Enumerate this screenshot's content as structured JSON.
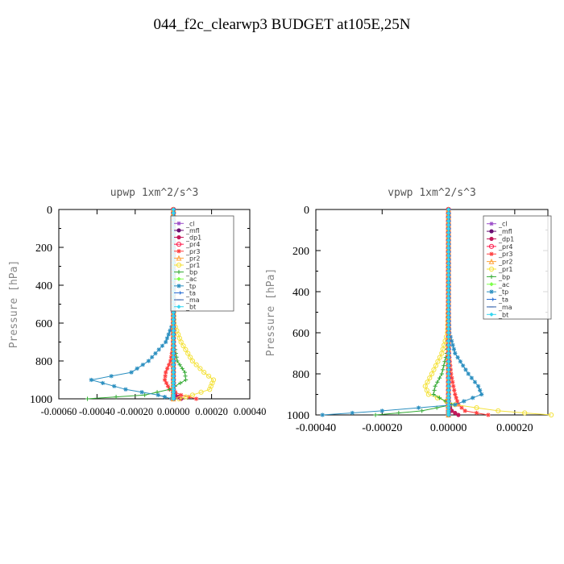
{
  "page": {
    "title": "044_f2c_clearwp3  BUDGET at105E,25N"
  },
  "legend_labels": [
    "_cl",
    "_mfl",
    "_dp1",
    "_pr4",
    "_pr3",
    "_pr2",
    "_pr1",
    "_bp",
    "_ac",
    "_tp",
    "_ta",
    "_ma",
    "_bt"
  ],
  "series_styles": [
    {
      "name": "_cl",
      "color": "#9b4dc9",
      "marker": "cross"
    },
    {
      "name": "_mfl",
      "color": "#6a0e72",
      "marker": "dot"
    },
    {
      "name": "_dp1",
      "color": "#c2185b",
      "marker": "dot"
    },
    {
      "name": "_pr4",
      "color": "#ff1a4b",
      "marker": "circle"
    },
    {
      "name": "_pr3",
      "color": "#ff4040",
      "marker": "asterisk"
    },
    {
      "name": "_pr2",
      "color": "#ffa33a",
      "marker": "triangle"
    },
    {
      "name": "_pr1",
      "color": "#f4e23c",
      "marker": "circle"
    },
    {
      "name": "_bp",
      "color": "#33aa33",
      "marker": "plus"
    },
    {
      "name": "_ac",
      "color": "#7cff4a",
      "marker": "diamond"
    },
    {
      "name": "_tp",
      "color": "#2b8fc0",
      "marker": "asterisk"
    },
    {
      "name": "_ta",
      "color": "#2a6fd4",
      "marker": "arrow"
    },
    {
      "name": "_ma",
      "color": "#2a5aa8",
      "marker": "dash"
    },
    {
      "name": "_bt",
      "color": "#35d6f0",
      "marker": "diamond"
    }
  ],
  "chart_data": [
    {
      "type": "line",
      "title": "upwp   1xm^2/s^3",
      "xlabel": "",
      "ylabel": "Pressure [hPa]",
      "ylim": [
        1000,
        0
      ],
      "xlim": [
        -0.0006,
        0.0004
      ],
      "x_ticks": [
        -0.0006,
        -0.0004,
        -0.0002,
        0.0,
        0.0002,
        0.0004
      ],
      "x_tick_labels": [
        "-0.00060",
        "-0.00040",
        "-0.00020",
        "0.00000",
        "0.00020",
        "0.00040"
      ],
      "y_ticks": [
        0,
        200,
        400,
        600,
        800,
        1000
      ],
      "y_tick_labels": [
        "0",
        "200",
        "400",
        "600",
        "800",
        "1000"
      ],
      "legend_position": "top-right",
      "series": [
        {
          "name": "_cl",
          "pressure": [
            0,
            150,
            300,
            450,
            600,
            700,
            800,
            860,
            900,
            950,
            980,
            1000
          ],
          "values": [
            0,
            0,
            0,
            0,
            0,
            0,
            0,
            0,
            0,
            0,
            0,
            0
          ]
        },
        {
          "name": "_mfl",
          "pressure": [
            0,
            150,
            300,
            450,
            600,
            700,
            800,
            860,
            900,
            950,
            980,
            1000
          ],
          "values": [
            0,
            0,
            0,
            0,
            0,
            0,
            0,
            0,
            0,
            0,
            0,
            0
          ]
        },
        {
          "name": "_dp1",
          "pressure": [
            0,
            150,
            300,
            450,
            600,
            700,
            800,
            860,
            900,
            950,
            980,
            1000
          ],
          "values": [
            0,
            0,
            0,
            0,
            0,
            0,
            0,
            0,
            0,
            0,
            1e-05,
            4e-05
          ]
        },
        {
          "name": "_pr4",
          "pressure": [
            0,
            150,
            300,
            450,
            600,
            700,
            800,
            860,
            900,
            950,
            980,
            1000
          ],
          "values": [
            0,
            0,
            0,
            0,
            0,
            0,
            0,
            0,
            0,
            0,
            0,
            0
          ]
        },
        {
          "name": "_pr3",
          "pressure": [
            0,
            150,
            300,
            450,
            600,
            700,
            800,
            860,
            900,
            950,
            980,
            1000
          ],
          "values": [
            0,
            0,
            0,
            0,
            0,
            2e-06,
            -1.5e-05,
            -4e-05,
            -4.5e-05,
            -2e-05,
            4e-05,
            0.00012
          ]
        },
        {
          "name": "_pr2",
          "pressure": [
            0,
            150,
            300,
            450,
            600,
            700,
            800,
            860,
            900,
            950,
            980,
            1000
          ],
          "values": [
            0,
            0,
            0,
            0,
            0,
            0,
            0,
            0,
            0,
            0,
            0,
            0
          ]
        },
        {
          "name": "_pr1",
          "pressure": [
            0,
            150,
            300,
            450,
            600,
            700,
            800,
            860,
            900,
            950,
            980,
            1000
          ],
          "values": [
            0,
            0,
            0,
            0,
            3e-06,
            4e-05,
            0.0001,
            0.00016,
            0.00021,
            0.00019,
            0.0001,
            3e-05
          ]
        },
        {
          "name": "_bp",
          "pressure": [
            0,
            150,
            300,
            450,
            600,
            700,
            800,
            860,
            900,
            950,
            980,
            1000
          ],
          "values": [
            0,
            0,
            0,
            0,
            0,
            3e-06,
            2e-05,
            6e-05,
            6.5e-05,
            -2e-05,
            -0.00015,
            -0.00045
          ]
        },
        {
          "name": "_ac",
          "pressure": [
            0,
            150,
            300,
            450,
            600,
            700,
            800,
            860,
            900,
            950,
            980,
            1000
          ],
          "values": [
            0,
            0,
            0,
            0,
            0,
            0,
            0,
            0,
            0,
            0,
            0,
            0
          ]
        },
        {
          "name": "_tp",
          "pressure": [
            0,
            150,
            300,
            450,
            600,
            700,
            800,
            860,
            900,
            950,
            980,
            1000
          ],
          "values": [
            0,
            0,
            0,
            0,
            -3e-06,
            -4e-05,
            -0.00013,
            -0.00022,
            -0.00043,
            -0.00025,
            -8e-05,
            -1e-05
          ]
        },
        {
          "name": "_ta",
          "pressure": [
            0,
            150,
            300,
            450,
            600,
            700,
            800,
            860,
            900,
            950,
            980,
            1000
          ],
          "values": [
            0,
            0,
            0,
            0,
            0,
            0,
            0,
            0,
            0,
            0,
            0,
            0
          ]
        },
        {
          "name": "_ma",
          "pressure": [
            0,
            150,
            300,
            450,
            600,
            700,
            800,
            860,
            900,
            950,
            980,
            1000
          ],
          "values": [
            0,
            0,
            0,
            0,
            0,
            0,
            0,
            0,
            0,
            0,
            0,
            0
          ]
        },
        {
          "name": "_bt",
          "pressure": [
            0,
            150,
            300,
            450,
            600,
            700,
            800,
            860,
            900,
            950,
            980,
            1000
          ],
          "values": [
            0,
            0,
            0,
            0,
            0,
            0,
            0,
            0,
            0,
            0,
            0,
            0
          ]
        }
      ]
    },
    {
      "type": "line",
      "title": "vpwp   1xm^2/s^3",
      "xlabel": "",
      "ylabel": "Pressure [hPa]",
      "ylim": [
        1000,
        0
      ],
      "xlim": [
        -0.0004,
        0.0003
      ],
      "x_ticks": [
        -0.0004,
        -0.0002,
        0.0,
        0.0002
      ],
      "x_tick_labels": [
        "-0.00040",
        "-0.00020",
        "0.00000",
        "0.00020"
      ],
      "y_ticks": [
        0,
        200,
        400,
        600,
        800,
        1000
      ],
      "y_tick_labels": [
        "0",
        "200",
        "400",
        "600",
        "800",
        "1000"
      ],
      "legend_position": "top-right",
      "series": [
        {
          "name": "_cl",
          "pressure": [
            0,
            150,
            300,
            450,
            600,
            700,
            800,
            860,
            900,
            950,
            980,
            1000
          ],
          "values": [
            0,
            0,
            0,
            0,
            0,
            0,
            0,
            0,
            0,
            0,
            0,
            0
          ]
        },
        {
          "name": "_mfl",
          "pressure": [
            0,
            150,
            300,
            450,
            600,
            700,
            800,
            860,
            900,
            950,
            980,
            1000
          ],
          "values": [
            0,
            0,
            0,
            0,
            0,
            0,
            0,
            0,
            0,
            0,
            0,
            0
          ]
        },
        {
          "name": "_dp1",
          "pressure": [
            0,
            150,
            300,
            450,
            600,
            700,
            800,
            860,
            900,
            950,
            980,
            1000
          ],
          "values": [
            0,
            0,
            0,
            0,
            0,
            0,
            0,
            0,
            0,
            0,
            1e-05,
            3e-05
          ]
        },
        {
          "name": "_pr4",
          "pressure": [
            0,
            150,
            300,
            450,
            600,
            700,
            800,
            860,
            900,
            950,
            980,
            1000
          ],
          "values": [
            0,
            0,
            0,
            0,
            0,
            0,
            0,
            0,
            0,
            0,
            0,
            0
          ]
        },
        {
          "name": "_pr3",
          "pressure": [
            0,
            150,
            300,
            450,
            600,
            700,
            800,
            860,
            900,
            950,
            980,
            1000
          ],
          "values": [
            0,
            0,
            0,
            0,
            0,
            2e-06,
            8e-06,
            1.5e-05,
            2e-05,
            3e-05,
            5e-05,
            0.00012
          ]
        },
        {
          "name": "_pr2",
          "pressure": [
            0,
            150,
            300,
            450,
            600,
            700,
            800,
            860,
            900,
            950,
            980,
            1000
          ],
          "values": [
            0,
            0,
            0,
            0,
            0,
            0,
            0,
            0,
            0,
            0,
            0,
            0
          ]
        },
        {
          "name": "_pr1",
          "pressure": [
            0,
            150,
            300,
            450,
            600,
            700,
            800,
            860,
            900,
            950,
            980,
            1000
          ],
          "values": [
            0,
            0,
            0,
            0,
            -3e-06,
            -2e-05,
            -5e-05,
            -7e-05,
            -6e-05,
            2e-05,
            0.00015,
            0.00031
          ]
        },
        {
          "name": "_bp",
          "pressure": [
            0,
            150,
            300,
            450,
            600,
            700,
            800,
            860,
            900,
            950,
            980,
            1000
          ],
          "values": [
            0,
            0,
            0,
            0,
            0,
            -5e-06,
            -2e-05,
            -4e-05,
            -4.5e-05,
            1e-05,
            -8e-05,
            -0.00022
          ]
        },
        {
          "name": "_ac",
          "pressure": [
            0,
            150,
            300,
            450,
            600,
            700,
            800,
            860,
            900,
            950,
            980,
            1000
          ],
          "values": [
            0,
            0,
            0,
            0,
            0,
            0,
            0,
            0,
            0,
            0,
            0,
            0
          ]
        },
        {
          "name": "_tp",
          "pressure": [
            0,
            150,
            300,
            450,
            600,
            700,
            800,
            860,
            900,
            950,
            980,
            1000
          ],
          "values": [
            0,
            0,
            0,
            0,
            3e-06,
            2e-05,
            6e-05,
            9e-05,
            0.0001,
            2e-05,
            -0.0002,
            -0.00038
          ]
        },
        {
          "name": "_ta",
          "pressure": [
            0,
            150,
            300,
            450,
            600,
            700,
            800,
            860,
            900,
            950,
            980,
            1000
          ],
          "values": [
            0,
            0,
            0,
            0,
            0,
            0,
            0,
            0,
            0,
            0,
            0,
            0
          ]
        },
        {
          "name": "_ma",
          "pressure": [
            0,
            150,
            300,
            450,
            600,
            700,
            800,
            860,
            900,
            950,
            980,
            1000
          ],
          "values": [
            0,
            0,
            0,
            0,
            0,
            0,
            0,
            0,
            0,
            0,
            0,
            0
          ]
        },
        {
          "name": "_bt",
          "pressure": [
            0,
            150,
            300,
            450,
            600,
            700,
            800,
            860,
            900,
            950,
            980,
            1000
          ],
          "values": [
            0,
            0,
            0,
            0,
            0,
            0,
            0,
            0,
            0,
            0,
            0,
            0
          ]
        }
      ]
    }
  ]
}
